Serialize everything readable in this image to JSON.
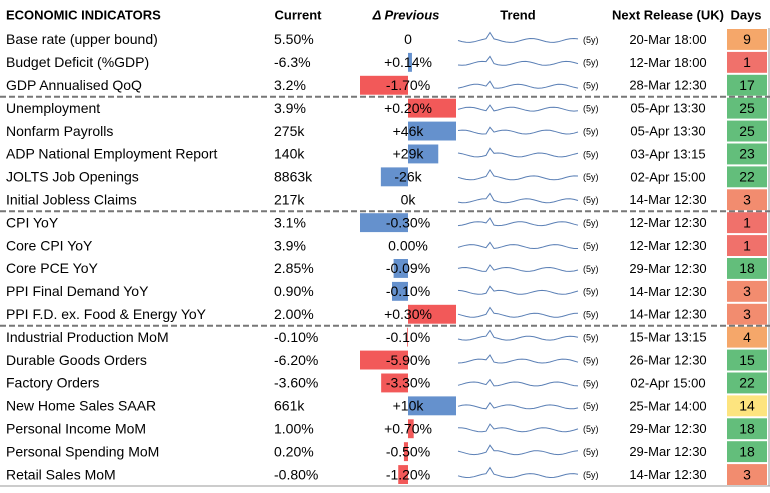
{
  "header": {
    "title": "ECONOMIC INDICATORS",
    "current": "Current",
    "previous": "Δ Previous",
    "trend": "Trend",
    "next_release": "Next Release (UK)",
    "days": "Days"
  },
  "groups": [
    3,
    8,
    13
  ],
  "rows": [
    {
      "name": "Base rate (upper bound)",
      "current": "5.50%",
      "delta": {
        "value": 0,
        "label": "0"
      },
      "bar_color": "#4a7ec4",
      "trend": "(5y)",
      "next_release": "20-Mar 18:00",
      "days": 9,
      "days_color": "#f5a76a"
    },
    {
      "name": "Budget Deficit (%GDP)",
      "current": "-6.3%",
      "delta": {
        "value": 0.14,
        "label": "+0.14%"
      },
      "bar_color": "#4a7ec4",
      "trend": "(5y)",
      "next_release": "12-Mar 18:00",
      "days": 1,
      "days_color": "#f0716b"
    },
    {
      "name": "GDP Annualised QoQ",
      "current": "3.2%",
      "delta": {
        "value": -1.7,
        "label": "-1.70%"
      },
      "bar_color": "#f03c3c",
      "trend": "(5y)",
      "next_release": "28-Mar 12:30",
      "days": 17,
      "days_color": "#63be7b"
    },
    {
      "name": "Unemployment",
      "current": "3.9%",
      "delta": {
        "value": 0.2,
        "label": "+0.20%"
      },
      "bar_color": "#f03c3c",
      "trend": "(5y)",
      "next_release": "05-Apr 13:30",
      "days": 25,
      "days_color": "#63be7b"
    },
    {
      "name": "Nonfarm Payrolls",
      "current": "275k",
      "delta": {
        "value": 46,
        "label": "+46k"
      },
      "bar_color": "#4a7ec4",
      "trend": "(5y)",
      "next_release": "05-Apr 13:30",
      "days": 25,
      "days_color": "#63be7b"
    },
    {
      "name": "ADP National Employment Report",
      "current": "140k",
      "delta": {
        "value": 29,
        "label": "+29k"
      },
      "bar_color": "#4a7ec4",
      "trend": "(5y)",
      "next_release": "03-Apr 13:15",
      "days": 23,
      "days_color": "#63be7b"
    },
    {
      "name": "JOLTS Job Openings",
      "current": "8863k",
      "delta": {
        "value": -26,
        "label": "-26k"
      },
      "bar_color": "#4a7ec4",
      "trend": "(5y)",
      "next_release": "02-Apr 15:00",
      "days": 22,
      "days_color": "#63be7b"
    },
    {
      "name": "Initial Jobless Claims",
      "current": "217k",
      "delta": {
        "value": 0,
        "label": "0k"
      },
      "bar_color": "#4a7ec4",
      "trend": "(5y)",
      "next_release": "14-Mar 12:30",
      "days": 3,
      "days_color": "#f28c6f"
    },
    {
      "name": "CPI YoY",
      "current": "3.1%",
      "delta": {
        "value": -0.3,
        "label": "-0.30%"
      },
      "bar_color": "#4a7ec4",
      "trend": "(5y)",
      "next_release": "12-Mar 12:30",
      "days": 1,
      "days_color": "#f0716b"
    },
    {
      "name": "Core CPI YoY",
      "current": "3.9%",
      "delta": {
        "value": 0.0,
        "label": "0.00%"
      },
      "bar_color": "#4a7ec4",
      "trend": "(5y)",
      "next_release": "12-Mar 12:30",
      "days": 1,
      "days_color": "#f0716b"
    },
    {
      "name": "Core PCE YoY",
      "current": "2.85%",
      "delta": {
        "value": -0.09,
        "label": "-0.09%"
      },
      "bar_color": "#4a7ec4",
      "trend": "(5y)",
      "next_release": "29-Mar 12:30",
      "days": 18,
      "days_color": "#63be7b"
    },
    {
      "name": "PPI Final Demand YoY",
      "current": "0.90%",
      "delta": {
        "value": -0.1,
        "label": "-0.10%"
      },
      "bar_color": "#4a7ec4",
      "trend": "(5y)",
      "next_release": "14-Mar 12:30",
      "days": 3,
      "days_color": "#f28c6f"
    },
    {
      "name": "PPI F.D. ex. Food & Energy YoY",
      "current": "2.00%",
      "delta": {
        "value": 0.3,
        "label": "+0.30%"
      },
      "bar_color": "#f03c3c",
      "trend": "(5y)",
      "next_release": "14-Mar 12:30",
      "days": 3,
      "days_color": "#f28c6f"
    },
    {
      "name": "Industrial Production MoM",
      "current": "-0.10%",
      "delta": {
        "value": -0.1,
        "label": "-0.10%"
      },
      "bar_color": "#f03c3c",
      "trend": "(5y)",
      "next_release": "15-Mar 13:15",
      "days": 4,
      "days_color": "#f5a76a"
    },
    {
      "name": "Durable Goods Orders",
      "current": "-6.20%",
      "delta": {
        "value": -5.9,
        "label": "-5.90%"
      },
      "bar_color": "#f03c3c",
      "trend": "(5y)",
      "next_release": "26-Mar 12:30",
      "days": 15,
      "days_color": "#63be7b"
    },
    {
      "name": "Factory Orders",
      "current": "-3.60%",
      "delta": {
        "value": -3.3,
        "label": "-3.30%"
      },
      "bar_color": "#f03c3c",
      "trend": "(5y)",
      "next_release": "02-Apr 15:00",
      "days": 22,
      "days_color": "#63be7b"
    },
    {
      "name": "New Home Sales SAAR",
      "current": "661k",
      "delta": {
        "value": 10,
        "label": "+10k"
      },
      "bar_color": "#4a7ec4",
      "trend": "(5y)",
      "next_release": "25-Mar 14:00",
      "days": 14,
      "days_color": "#fde47f"
    },
    {
      "name": "Personal Income MoM",
      "current": "1.00%",
      "delta": {
        "value": 0.7,
        "label": "+0.70%"
      },
      "bar_color": "#f03c3c",
      "trend": "(5y)",
      "next_release": "29-Mar 12:30",
      "days": 18,
      "days_color": "#63be7b"
    },
    {
      "name": "Personal Spending MoM",
      "current": "0.20%",
      "delta": {
        "value": -0.5,
        "label": "-0.50%"
      },
      "bar_color": "#f03c3c",
      "trend": "(5y)",
      "next_release": "29-Mar 12:30",
      "days": 18,
      "days_color": "#63be7b"
    },
    {
      "name": "Retail Sales MoM",
      "current": "-0.80%",
      "delta": {
        "value": -1.2,
        "label": "-1.20%"
      },
      "bar_color": "#f03c3c",
      "trend": "(5y)",
      "next_release": "14-Mar 12:30",
      "days": 3,
      "days_color": "#f28c6f"
    }
  ]
}
